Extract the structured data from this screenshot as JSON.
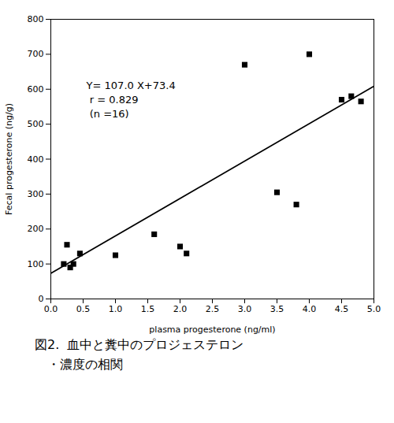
{
  "chart_data": {
    "type": "scatter",
    "xlabel": "plasma progesterone (ng/ml)",
    "ylabel": "Fecal progesterone (ng/g)",
    "series": [
      {
        "type": "scatter",
        "marker": "square",
        "color": "black",
        "x": [
          0.2,
          0.25,
          0.3,
          0.35,
          0.45,
          1.0,
          1.6,
          2.0,
          2.1,
          3.0,
          3.5,
          3.8,
          4.0,
          4.5,
          4.65,
          4.8
        ],
        "values": [
          100,
          155,
          90,
          100,
          130,
          125,
          185,
          150,
          130,
          670,
          305,
          270,
          700,
          570,
          580,
          565
        ]
      },
      {
        "type": "line",
        "line_style": "solid",
        "color": "black",
        "x": [
          0,
          5
        ],
        "values": [
          73.4,
          608.4
        ]
      }
    ],
    "annotations": [
      {
        "text": [
          "Y= 107.0 X+73.4",
          " r = 0.829",
          " (n =16)"
        ],
        "x": 0.55,
        "y": 630
      }
    ],
    "caption": [
      "図2.  血中と糞中のプロジェステロン",
      "　・濃度の相関"
    ],
    "xlim": [
      0,
      5
    ],
    "ylim": [
      0,
      800
    ],
    "xticks": [
      {
        "value": 0,
        "label": "0.0"
      },
      0.5,
      {
        "value": 1,
        "label": "1.0"
      },
      1.5,
      {
        "value": 2,
        "label": "2.0"
      },
      2.5,
      {
        "value": 3,
        "label": "3.0"
      },
      3.5,
      {
        "value": 4,
        "label": "4.0"
      },
      4.5,
      {
        "value": 5,
        "label": "5.0"
      }
    ],
    "yticks": [
      0,
      100,
      200,
      300,
      400,
      500,
      600,
      700,
      800
    ],
    "grid": false
  }
}
